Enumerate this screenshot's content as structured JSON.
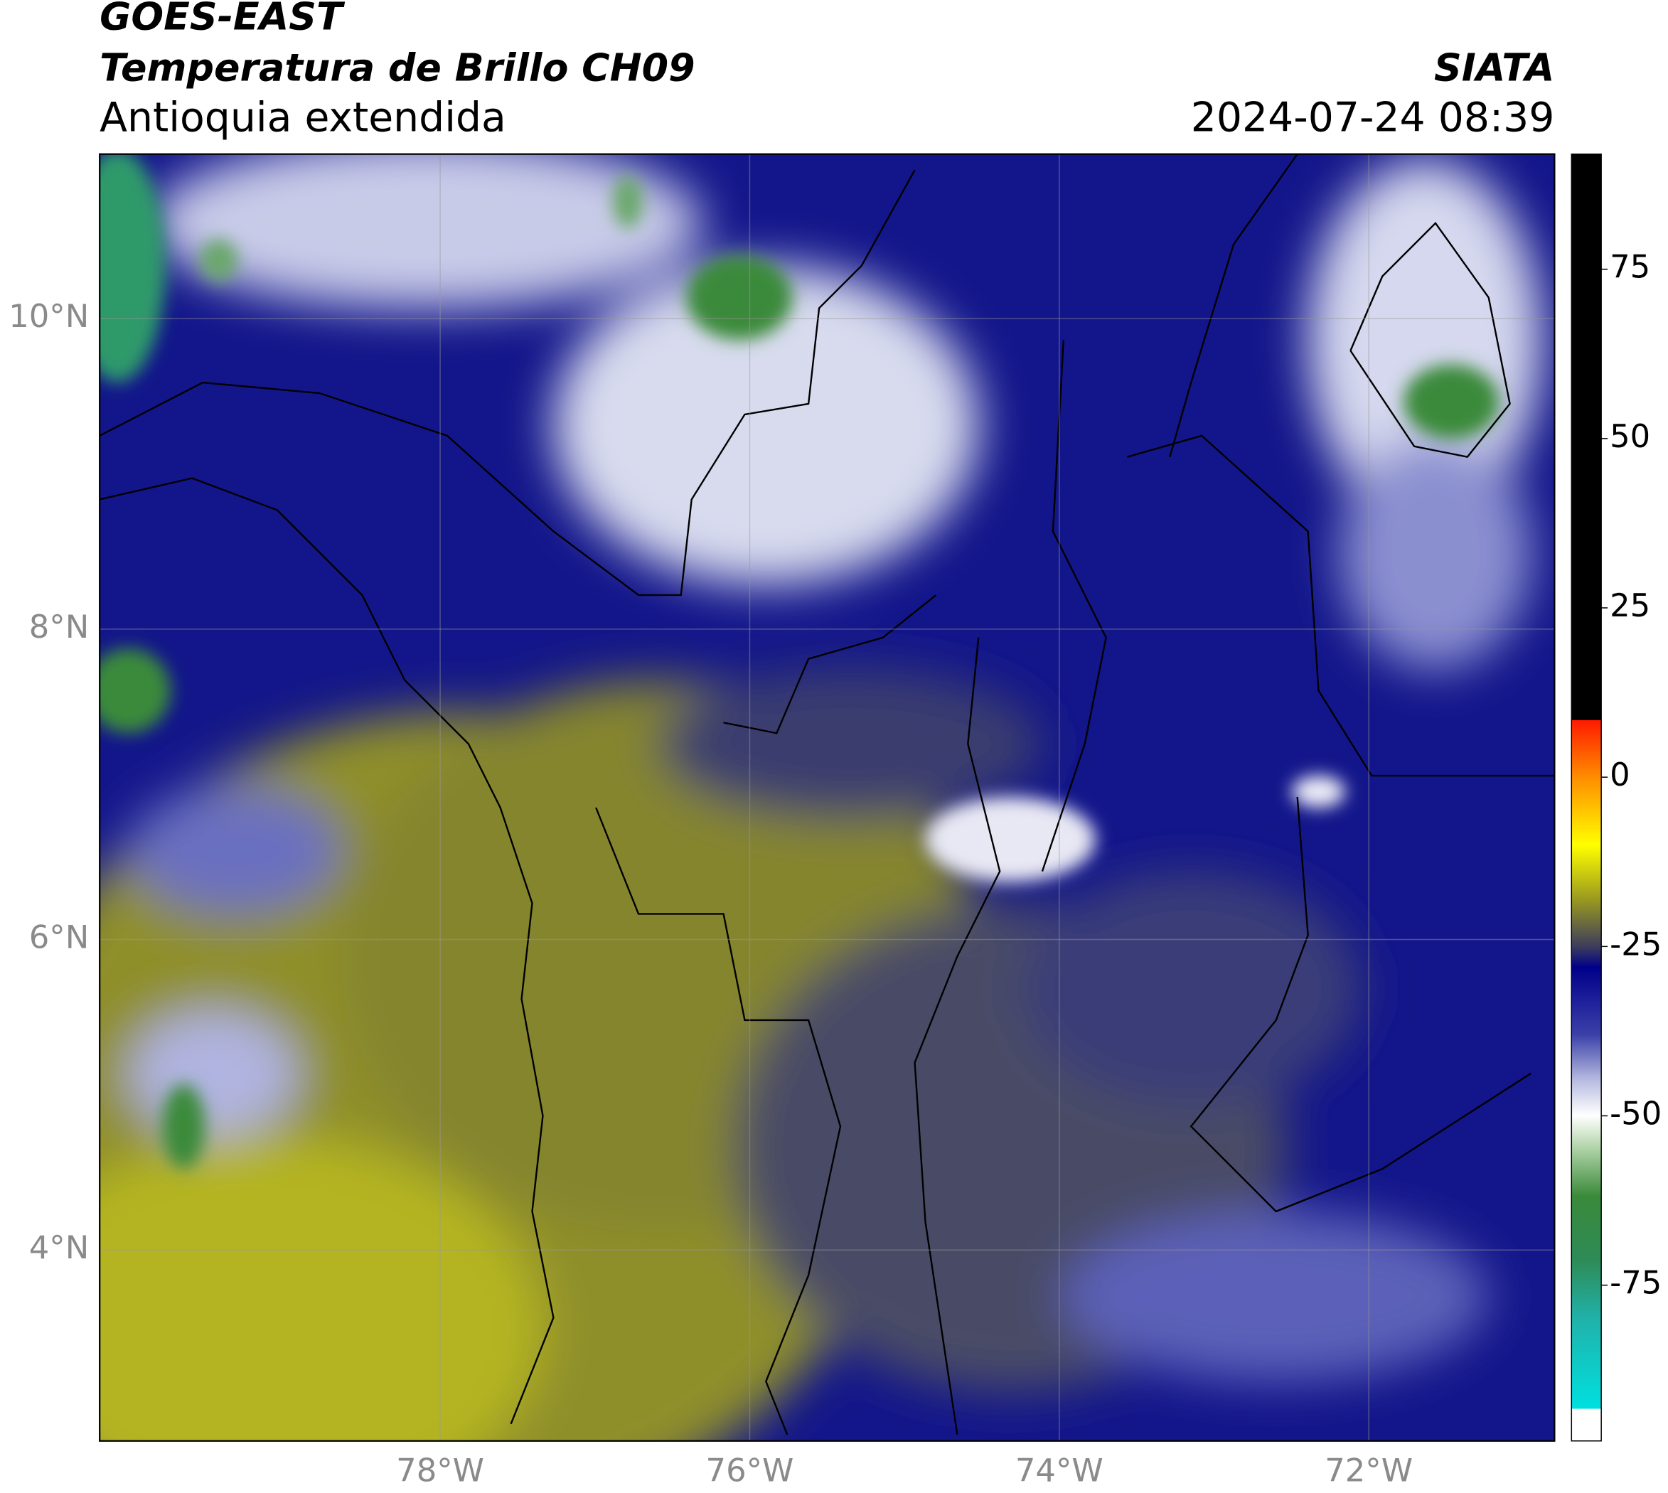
{
  "header": {
    "title": "GOES-EAST",
    "subtitle": "Temperatura de Brillo CH09",
    "region": "Antioquia extendida",
    "source": "SIATA",
    "datetime": "2024-07-24 08:39"
  },
  "map": {
    "xlim": [
      -80.2,
      -70.8
    ],
    "ylim": [
      2.77,
      11.06
    ],
    "xticks": [
      {
        "value": -78,
        "label": "78°W"
      },
      {
        "value": -76,
        "label": "76°W"
      },
      {
        "value": -74,
        "label": "74°W"
      },
      {
        "value": -72,
        "label": "72°W"
      }
    ],
    "yticks": [
      {
        "value": 4,
        "label": "4°N"
      },
      {
        "value": 6,
        "label": "6°N"
      },
      {
        "value": 8,
        "label": "8°N"
      },
      {
        "value": 10,
        "label": "10°N"
      }
    ],
    "grid": true
  },
  "colorbar": {
    "lim": [
      -98,
      92
    ],
    "ticks": [
      -75,
      -50,
      -25,
      0,
      25,
      50,
      75
    ]
  }
}
